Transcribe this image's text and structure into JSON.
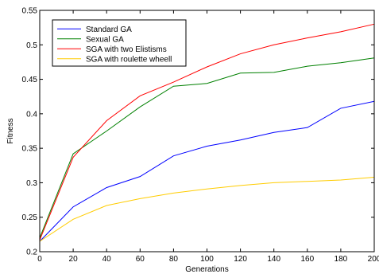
{
  "chart_data": {
    "type": "line",
    "xlabel": "Generations",
    "ylabel": "Fitness",
    "xlim": [
      0,
      200
    ],
    "ylim": [
      0.2,
      0.55
    ],
    "x_ticks": [
      0,
      20,
      40,
      60,
      80,
      100,
      120,
      140,
      160,
      180,
      200
    ],
    "y_ticks": [
      0.2,
      0.25,
      0.3,
      0.35,
      0.4,
      0.45,
      0.5,
      0.55
    ],
    "x_tick_labels": [
      "0",
      "20",
      "40",
      "60",
      "80",
      "100",
      "120",
      "140",
      "160",
      "180",
      "200"
    ],
    "y_tick_labels": [
      "0.2",
      "0.25",
      "0.3",
      "0.35",
      "0.4",
      "0.45",
      "0.5",
      "0.55"
    ],
    "legend_position": "top-left",
    "grid": false,
    "x": [
      0,
      20,
      40,
      60,
      80,
      100,
      120,
      140,
      160,
      180,
      200
    ],
    "series": [
      {
        "name": "Standard GA",
        "color": "#0000ff",
        "values": [
          0.215,
          0.265,
          0.293,
          0.309,
          0.339,
          0.353,
          0.362,
          0.373,
          0.38,
          0.408,
          0.418
        ]
      },
      {
        "name": "Sexual GA",
        "color": "#008000",
        "values": [
          0.22,
          0.342,
          0.375,
          0.41,
          0.44,
          0.444,
          0.459,
          0.46,
          0.469,
          0.474,
          0.481
        ]
      },
      {
        "name": "SGA with two Elistisms",
        "color": "#ff0000",
        "values": [
          0.217,
          0.337,
          0.39,
          0.426,
          0.446,
          0.468,
          0.487,
          0.5,
          0.51,
          0.519,
          0.53
        ]
      },
      {
        "name": "SGA with roulette wheell",
        "color": "#ffcc00",
        "values": [
          0.215,
          0.247,
          0.267,
          0.277,
          0.285,
          0.291,
          0.296,
          0.3,
          0.302,
          0.304,
          0.308
        ]
      }
    ]
  }
}
